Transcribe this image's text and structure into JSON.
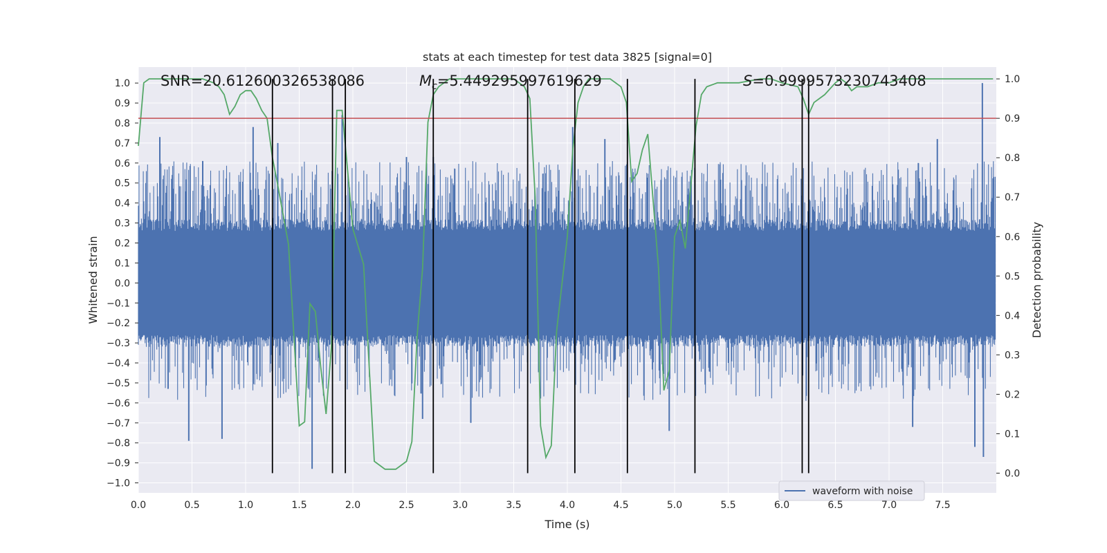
{
  "chart_data": {
    "type": "line",
    "title": "stats at each timestep for test data 3825 [signal=0]",
    "xlabel": "Time (s)",
    "ylabel": "Whitened strain",
    "y2label": "Detection probability",
    "xlim": [
      0.0,
      8.0
    ],
    "ylim": [
      -1.05,
      1.08
    ],
    "y2lim": [
      -0.05,
      1.03
    ],
    "xticks": [
      0.0,
      0.5,
      1.0,
      1.5,
      2.0,
      2.5,
      3.0,
      3.5,
      4.0,
      4.5,
      5.0,
      5.5,
      6.0,
      6.5,
      7.0,
      7.5
    ],
    "xtick_labels": [
      "0.0",
      "0.5",
      "1.0",
      "1.5",
      "2.0",
      "2.5",
      "3.0",
      "3.5",
      "4.0",
      "4.5",
      "5.0",
      "5.5",
      "6.0",
      "6.5",
      "7.0",
      "7.5"
    ],
    "yticks": [
      1.0,
      0.9,
      0.8,
      0.7,
      0.6,
      0.5,
      0.4,
      0.3,
      0.2,
      0.1,
      0.0,
      -0.1,
      -0.2,
      -0.3,
      -0.4,
      -0.5,
      -0.6,
      -0.7,
      -0.8,
      -0.9,
      -1.0
    ],
    "ytick_labels": [
      "1.0",
      "0.9",
      "0.8",
      "0.7",
      "0.6",
      "0.5",
      "0.4",
      "0.3",
      "0.2",
      "0.1",
      "0.0",
      "−0.1",
      "−0.2",
      "−0.3",
      "−0.4",
      "−0.5",
      "−0.6",
      "−0.7",
      "−0.8",
      "−0.9",
      "−1.0"
    ],
    "y2ticks": [
      1.0,
      0.9,
      0.8,
      0.7,
      0.6,
      0.5,
      0.4,
      0.3,
      0.2,
      0.1,
      0.0
    ],
    "y2tick_labels": [
      "1.0",
      "0.9",
      "0.8",
      "0.7",
      "0.6",
      "0.5",
      "0.4",
      "0.3",
      "0.2",
      "0.1",
      "0.0"
    ],
    "annotations": {
      "snr": "SNR=20.612600326538086",
      "mc_symbol": "M",
      "mc_sub": "c",
      "mc_value": "=5.449295997619629",
      "s_symbol": "S",
      "s_value": "=0.9999573230743408"
    },
    "legend": {
      "label": "waveform with noise",
      "position": "lower-right"
    },
    "colors": {
      "waveform": "#4c72b0",
      "probability": "#55a868",
      "threshold": "#c44e52",
      "markers": "#000000",
      "background": "#eaeaf2",
      "grid": "#ffffff"
    },
    "waveform": {
      "name": "waveform with noise",
      "duration_s": 7.99,
      "core_amplitude": 0.26,
      "peaks": [
        {
          "t": 0.2,
          "v": 0.73
        },
        {
          "t": 0.6,
          "v": 0.61
        },
        {
          "t": 1.07,
          "v": 0.78
        },
        {
          "t": 1.3,
          "v": 0.7
        },
        {
          "t": 1.9,
          "v": 0.84
        },
        {
          "t": 2.5,
          "v": 0.63
        },
        {
          "t": 2.75,
          "v": 0.63
        },
        {
          "t": 4.05,
          "v": 0.78
        },
        {
          "t": 4.35,
          "v": 0.72
        },
        {
          "t": 7.45,
          "v": 0.72
        },
        {
          "t": 7.87,
          "v": 1.0
        },
        {
          "t": 0.47,
          "v": -0.79
        },
        {
          "t": 0.78,
          "v": -0.78
        },
        {
          "t": 1.62,
          "v": -0.93
        },
        {
          "t": 2.65,
          "v": -0.68
        },
        {
          "t": 3.1,
          "v": -0.7
        },
        {
          "t": 4.95,
          "v": -0.74
        },
        {
          "t": 7.22,
          "v": -0.72
        },
        {
          "t": 7.8,
          "v": -0.82
        },
        {
          "t": 7.88,
          "v": -0.87
        }
      ]
    },
    "detection_probability": {
      "name": "detection probability",
      "x": [
        0.0,
        0.05,
        0.1,
        0.15,
        0.2,
        0.3,
        0.4,
        0.5,
        0.6,
        0.7,
        0.75,
        0.8,
        0.85,
        0.9,
        0.95,
        1.0,
        1.05,
        1.1,
        1.15,
        1.2,
        1.25,
        1.3,
        1.4,
        1.5,
        1.55,
        1.6,
        1.65,
        1.7,
        1.75,
        1.8,
        1.85,
        1.9,
        1.95,
        2.0,
        2.1,
        2.15,
        2.2,
        2.25,
        2.3,
        2.35,
        2.4,
        2.45,
        2.5,
        2.55,
        2.6,
        2.65,
        2.7,
        2.75,
        2.8,
        2.85,
        2.9,
        3.0,
        3.2,
        3.4,
        3.5,
        3.55,
        3.6,
        3.65,
        3.7,
        3.75,
        3.8,
        3.85,
        3.9,
        4.0,
        4.05,
        4.1,
        4.15,
        4.2,
        4.3,
        4.4,
        4.5,
        4.55,
        4.6,
        4.65,
        4.7,
        4.75,
        4.85,
        4.9,
        4.95,
        5.0,
        5.05,
        5.1,
        5.2,
        5.25,
        5.3,
        5.4,
        5.6,
        5.8,
        5.9,
        6.0,
        6.15,
        6.2,
        6.25,
        6.3,
        6.4,
        6.5,
        6.55,
        6.6,
        6.65,
        6.7,
        6.8,
        6.9,
        7.0,
        7.1,
        7.2,
        7.4,
        7.6,
        7.8,
        7.97
      ],
      "y": [
        0.83,
        0.99,
        1.0,
        1.0,
        1.0,
        1.0,
        1.0,
        1.0,
        1.0,
        0.99,
        0.98,
        0.96,
        0.91,
        0.93,
        0.96,
        0.97,
        0.97,
        0.95,
        0.92,
        0.9,
        0.8,
        0.73,
        0.58,
        0.12,
        0.13,
        0.43,
        0.41,
        0.27,
        0.15,
        0.32,
        0.92,
        0.92,
        0.77,
        0.62,
        0.53,
        0.28,
        0.03,
        0.02,
        0.01,
        0.01,
        0.01,
        0.02,
        0.03,
        0.08,
        0.35,
        0.52,
        0.89,
        0.96,
        0.98,
        0.99,
        1.0,
        1.0,
        1.0,
        1.0,
        1.0,
        0.99,
        0.98,
        0.95,
        0.7,
        0.12,
        0.04,
        0.07,
        0.36,
        0.6,
        0.82,
        0.94,
        0.98,
        1.0,
        1.0,
        1.0,
        0.98,
        0.94,
        0.74,
        0.76,
        0.82,
        0.86,
        0.52,
        0.21,
        0.26,
        0.6,
        0.64,
        0.57,
        0.88,
        0.96,
        0.98,
        0.99,
        0.99,
        1.0,
        1.0,
        0.99,
        0.98,
        0.95,
        0.91,
        0.94,
        0.96,
        0.99,
        1.0,
        0.99,
        0.97,
        0.98,
        0.98,
        0.99,
        0.99,
        1.0,
        1.0,
        1.0,
        1.0,
        1.0,
        1.0
      ]
    },
    "threshold": {
      "y2": 0.9
    },
    "event_markers_s": [
      1.25,
      1.81,
      1.93,
      2.75,
      3.63,
      4.07,
      4.56,
      5.19,
      6.19,
      6.25
    ],
    "event_marker_range_y2": [
      0.0,
      1.0
    ]
  }
}
